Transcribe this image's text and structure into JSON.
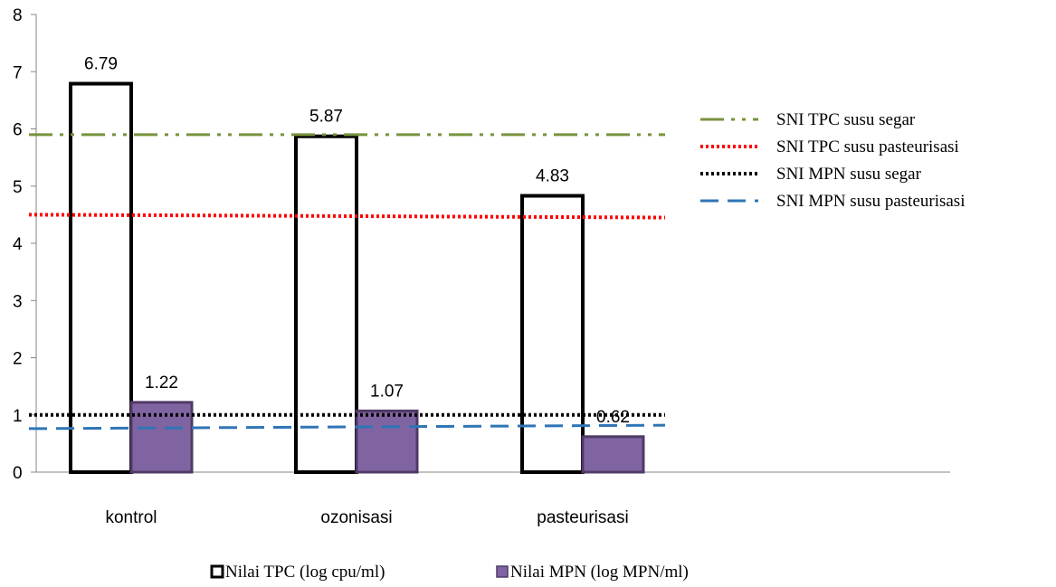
{
  "chart_data": {
    "type": "bar",
    "categories": [
      "kontrol",
      "ozonisasi",
      "pasteurisasi"
    ],
    "series": [
      {
        "name": "Nilai TPC (log cpu/ml)",
        "values": [
          6.79,
          5.87,
          4.83
        ],
        "labels": [
          "6.79",
          "5.87",
          "4.83"
        ],
        "fill": "#ffffff",
        "stroke": "#000000"
      },
      {
        "name": "Nilai MPN (log MPN/ml)",
        "values": [
          1.22,
          1.07,
          0.62
        ],
        "labels": [
          "1.22",
          "1.07",
          "0.62"
        ],
        "fill": "#8064a2",
        "stroke": "#4f3a66"
      }
    ],
    "reference_lines": [
      {
        "name": "SNI  TPC susu segar",
        "y_start": 5.9,
        "y_end": 5.9,
        "color": "#77933c",
        "style": "dash-dot-dot"
      },
      {
        "name": "SNI TPC susu pasteurisasi",
        "y_start": 4.5,
        "y_end": 4.45,
        "color": "#ff0000",
        "style": "dotted"
      },
      {
        "name": "SNI MPN susu segar",
        "y_start": 1.0,
        "y_end": 1.0,
        "color": "#000000",
        "style": "dotted"
      },
      {
        "name": "SNI MPN susu pasteurisasi",
        "y_start": 0.76,
        "y_end": 0.82,
        "color": "#2e75b6",
        "style": "dashed"
      }
    ],
    "ylim": [
      0,
      8
    ],
    "yticks": [
      "0",
      "1",
      "2",
      "3",
      "4",
      "5",
      "6",
      "7",
      "8"
    ],
    "grid": false,
    "legend_position": "right (reference lines), bottom (bar series)",
    "title": "",
    "xlabel": "",
    "ylabel": ""
  }
}
